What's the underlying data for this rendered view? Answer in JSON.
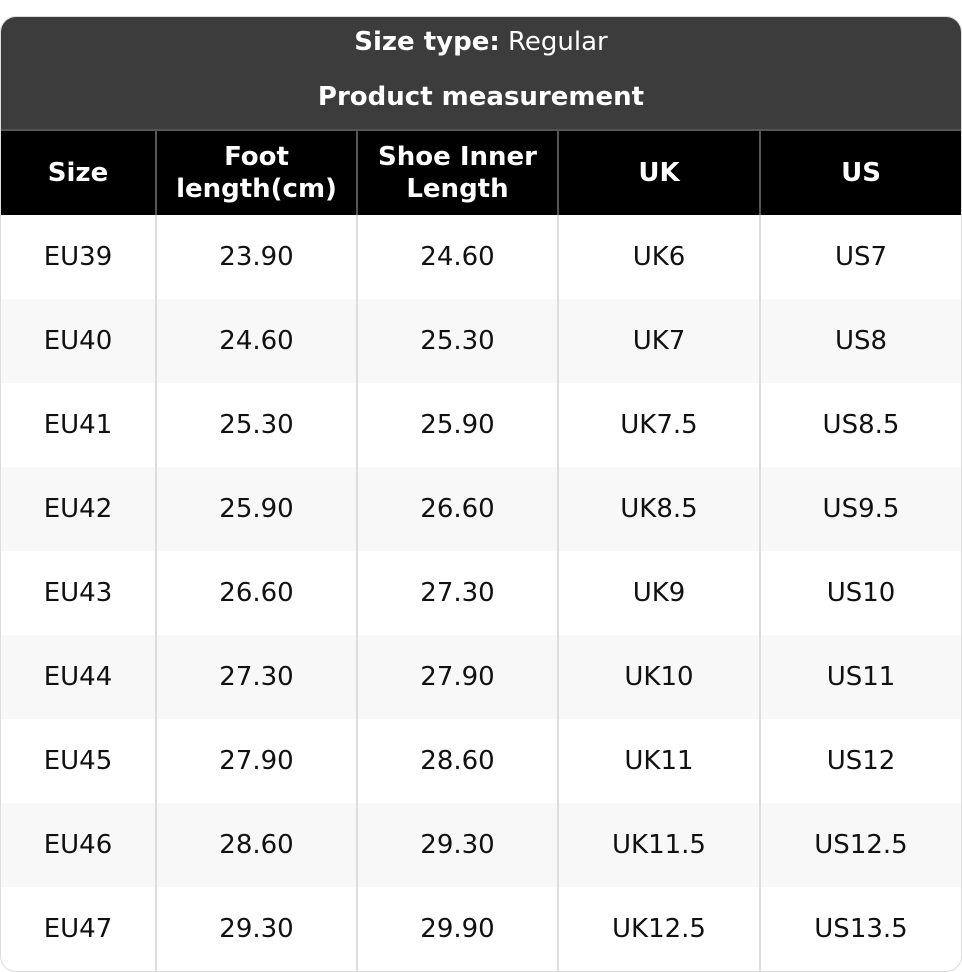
{
  "title": {
    "size_type_label": "Size type:",
    "size_type_value": "Regular",
    "subtitle": "Product measurement"
  },
  "columns": [
    "Size",
    "Foot length(cm)",
    "Shoe Inner Length",
    "UK",
    "US"
  ],
  "rows": [
    [
      "EU39",
      "23.90",
      "24.60",
      "UK6",
      "US7"
    ],
    [
      "EU40",
      "24.60",
      "25.30",
      "UK7",
      "US8"
    ],
    [
      "EU41",
      "25.30",
      "25.90",
      "UK7.5",
      "US8.5"
    ],
    [
      "EU42",
      "25.90",
      "26.60",
      "UK8.5",
      "US9.5"
    ],
    [
      "EU43",
      "26.60",
      "27.30",
      "UK9",
      "US10"
    ],
    [
      "EU44",
      "27.30",
      "27.90",
      "UK10",
      "US11"
    ],
    [
      "EU45",
      "27.90",
      "28.60",
      "UK11",
      "US12"
    ],
    [
      "EU46",
      "28.60",
      "29.30",
      "UK11.5",
      "US12.5"
    ],
    [
      "EU47",
      "29.30",
      "29.90",
      "UK12.5",
      "US13.5"
    ]
  ]
}
